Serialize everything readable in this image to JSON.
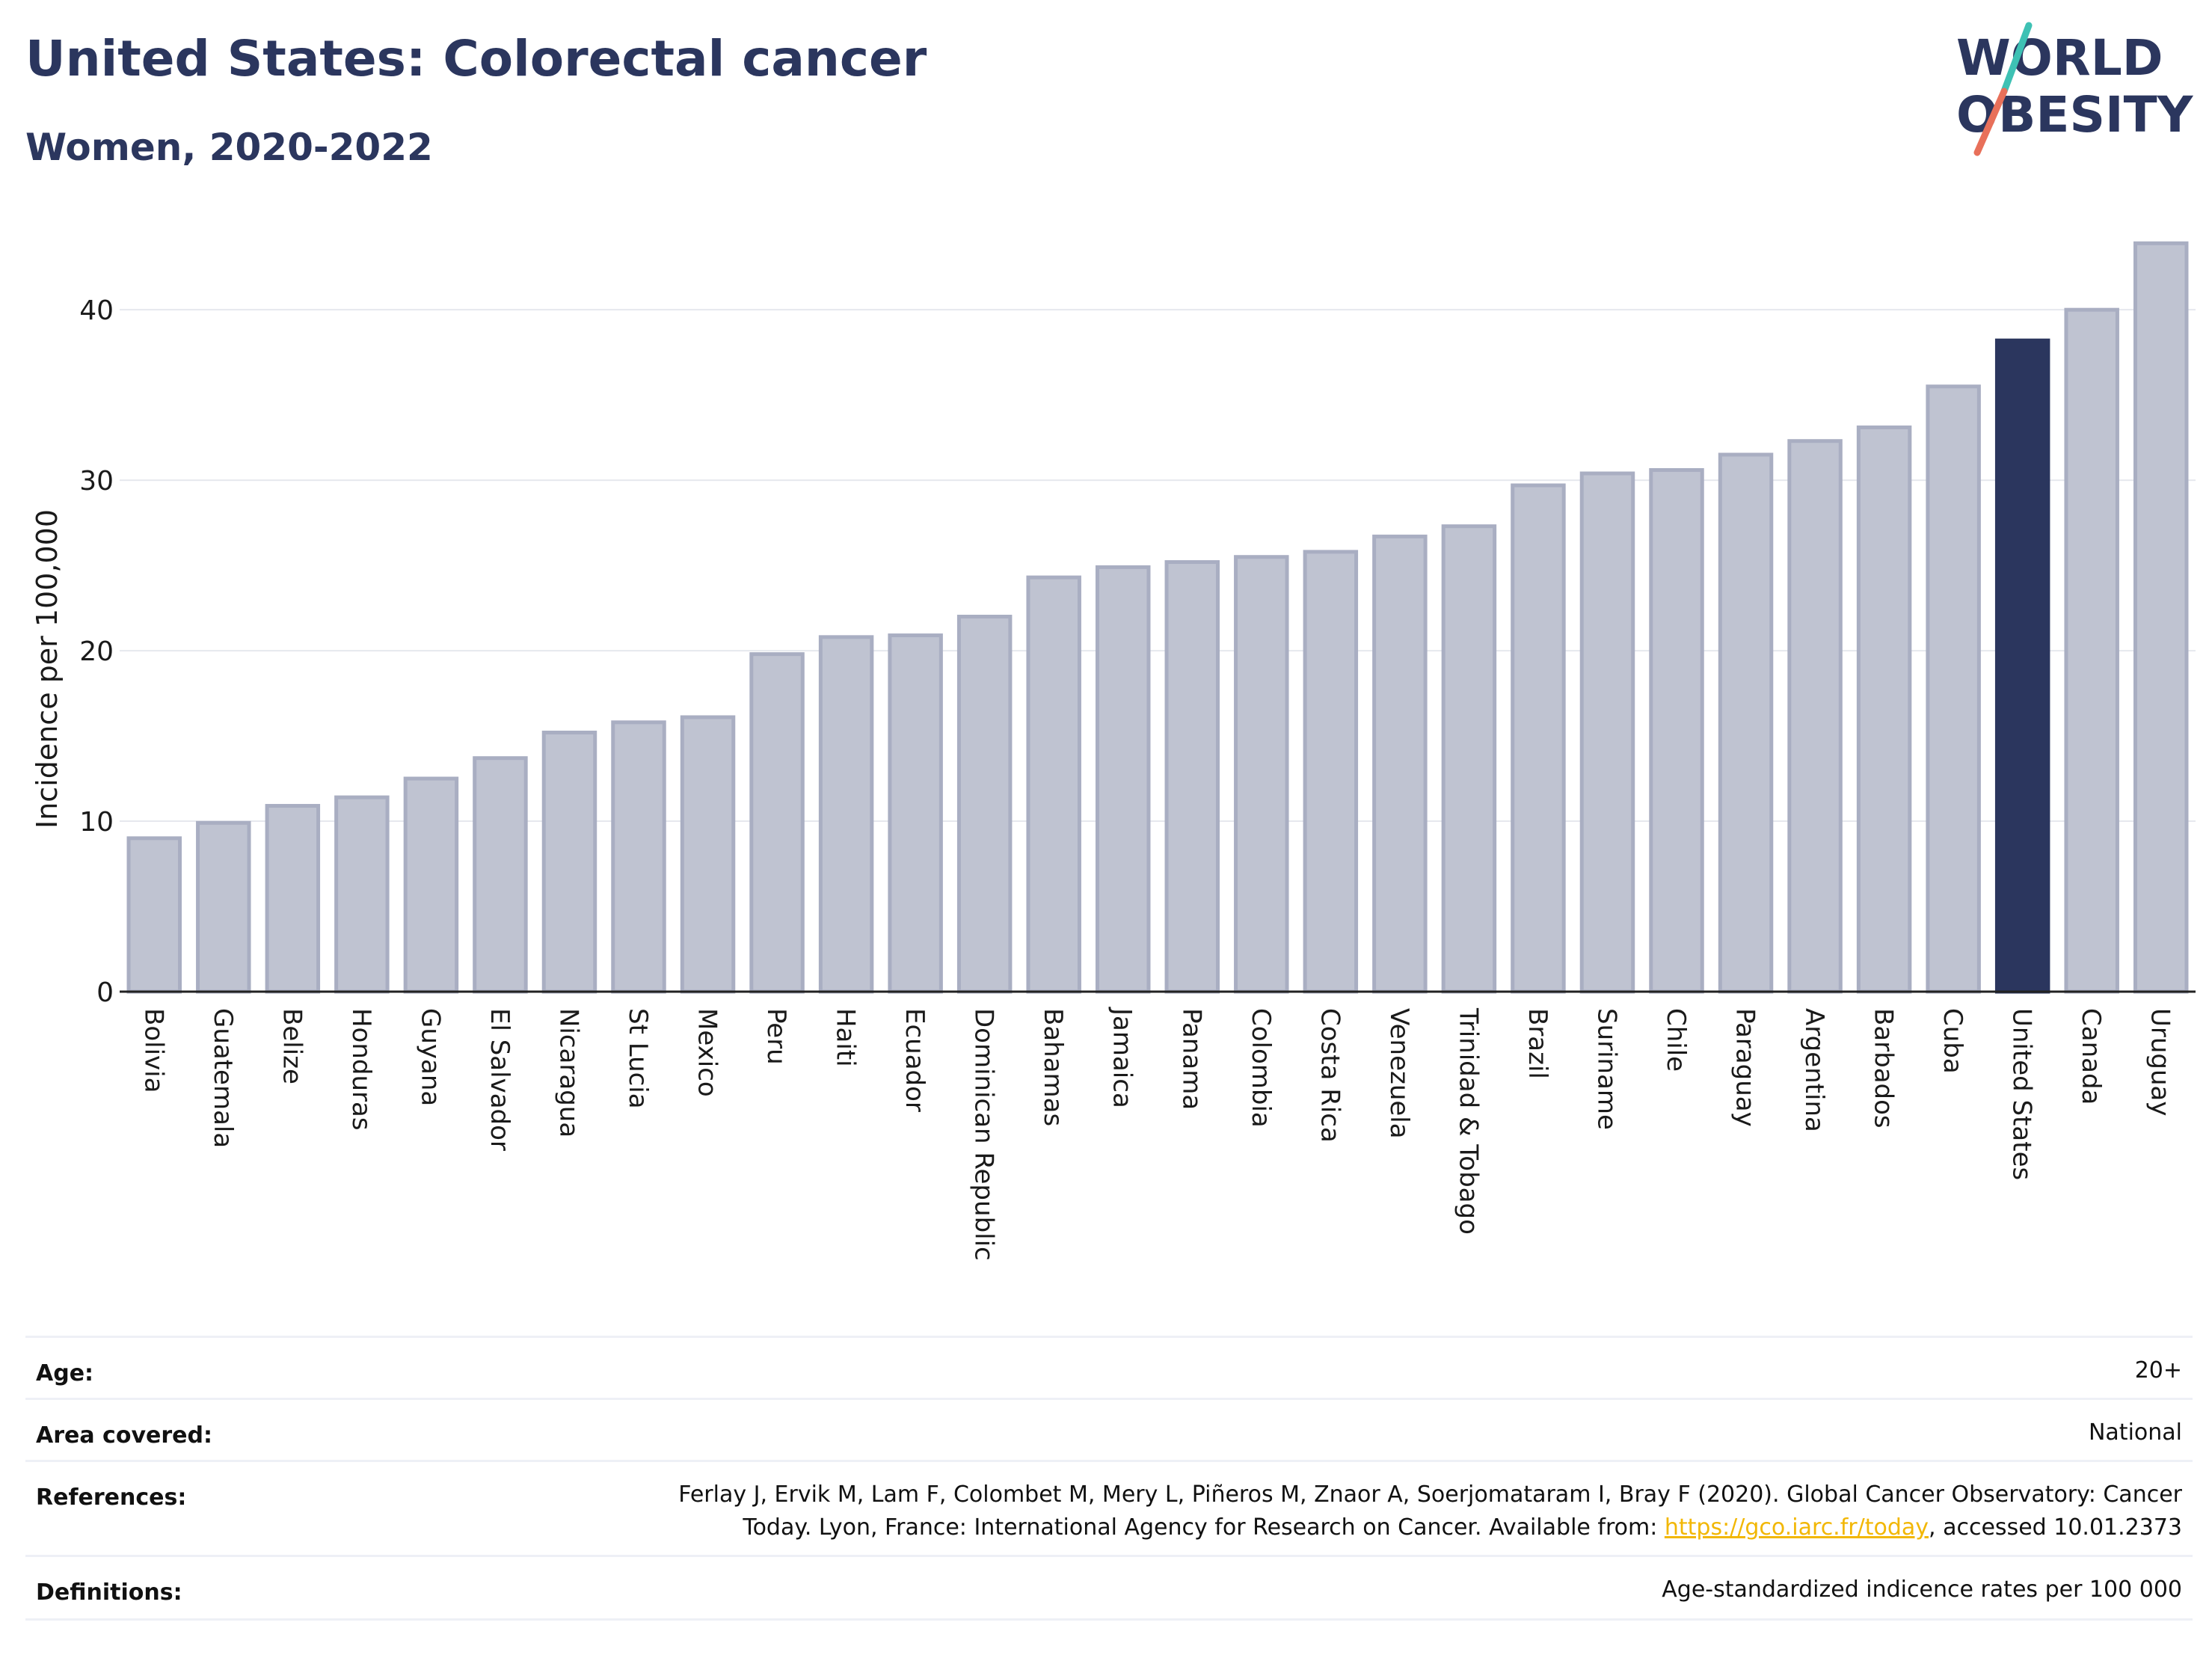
{
  "header": {
    "title": "United States: Colorectal cancer",
    "subtitle": "Women, 2020-2022"
  },
  "logo": {
    "line1": "WORLD",
    "line2": "OBESITY",
    "text_color": "#2b365e",
    "slash_color_top": "#3ec1b4",
    "slash_color_bottom": "#e8705a"
  },
  "chart_data": {
    "type": "bar",
    "ylabel": "Incidence per 100,000",
    "xlabel": "",
    "ylim": [
      0,
      44
    ],
    "yticks": [
      0,
      10,
      20,
      30,
      40
    ],
    "grid": true,
    "highlight": "United States",
    "colors": {
      "bar": "#bfc3d1",
      "bar_border": "#a9aec2",
      "highlight": "#2b365e",
      "grid": "#e6e8ee",
      "axis": "#222222"
    },
    "categories": [
      "Bolivia",
      "Guatemala",
      "Belize",
      "Honduras",
      "Guyana",
      "El Salvador",
      "Nicaragua",
      "St Lucia",
      "Mexico",
      "Peru",
      "Haiti",
      "Ecuador",
      "Dominican Republic",
      "Bahamas",
      "Jamaica",
      "Panama",
      "Colombia",
      "Costa Rica",
      "Venezuela",
      "Trinidad & Tobago",
      "Brazil",
      "Suriname",
      "Chile",
      "Paraguay",
      "Argentina",
      "Barbados",
      "Cuba",
      "United States",
      "Canada",
      "Uruguay"
    ],
    "values": [
      9.0,
      9.9,
      10.9,
      11.4,
      12.5,
      13.7,
      15.2,
      15.8,
      16.1,
      19.8,
      20.8,
      20.9,
      22.0,
      24.3,
      24.9,
      25.2,
      25.5,
      25.8,
      26.7,
      27.3,
      29.7,
      30.4,
      30.6,
      31.5,
      32.3,
      33.1,
      35.5,
      38.2,
      40.0,
      43.9
    ]
  },
  "meta": {
    "age_label": "Age:",
    "age_value": "20+",
    "area_label": "Area covered:",
    "area_value": "National",
    "references_label": "References:",
    "references_line1": "Ferlay J, Ervik M, Lam F, Colombet M, Mery L, Piñeros M, Znaor A, Soerjomataram I, Bray F (2020). Global Cancer Observatory: Cancer",
    "references_line2_pre": "Today. Lyon, France: International Agency for Research on Cancer. Available from: ",
    "references_link": "https://gco.iarc.fr/today",
    "references_line2_post": ", accessed 10.01.2373",
    "definitions_label": "Definitions:",
    "definitions_value": "Age-standardized indicence rates per 100 000"
  }
}
